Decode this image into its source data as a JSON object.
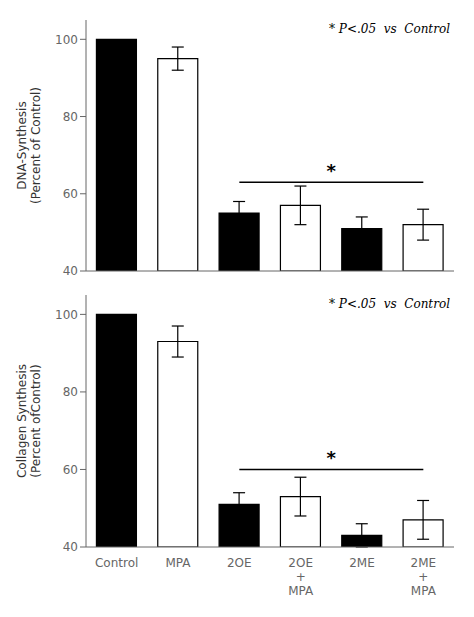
{
  "chart_data": [
    {
      "type": "bar",
      "categories": [
        null,
        null,
        null,
        null,
        null,
        null
      ],
      "values": [
        100,
        95,
        55,
        57,
        51,
        52
      ],
      "errors": [
        0,
        3,
        3,
        5,
        3,
        4
      ],
      "colors": [
        "#000000",
        "#ffffff",
        "#000000",
        "#ffffff",
        "#000000",
        "#ffffff"
      ],
      "ylabel": "DNA-Synthesis\n(Percent of Control)",
      "ylim": [
        40,
        105
      ],
      "yticks": [
        40,
        60,
        80,
        100
      ],
      "annotation": "* P<.05  vs  Control",
      "bracket": {
        "from": 2,
        "to": 5,
        "y": 63,
        "label": "*"
      }
    },
    {
      "type": "bar",
      "categories": [
        "Control",
        "MPA",
        "2OE",
        "2OE\n+\nMPA",
        "2ME",
        "2ME\n+\nMPA"
      ],
      "values": [
        100,
        93,
        51,
        53,
        43,
        47
      ],
      "errors": [
        0,
        4,
        3,
        5,
        3,
        5
      ],
      "colors": [
        "#000000",
        "#ffffff",
        "#000000",
        "#ffffff",
        "#000000",
        "#ffffff"
      ],
      "ylabel": "Collagen Synthesis\n(Percent ofControl)",
      "ylim": [
        40,
        105
      ],
      "yticks": [
        40,
        60,
        80,
        100
      ],
      "annotation": "* P<.05  vs  Control",
      "bracket": {
        "from": 2,
        "to": 5,
        "y": 60,
        "label": "*"
      }
    }
  ]
}
